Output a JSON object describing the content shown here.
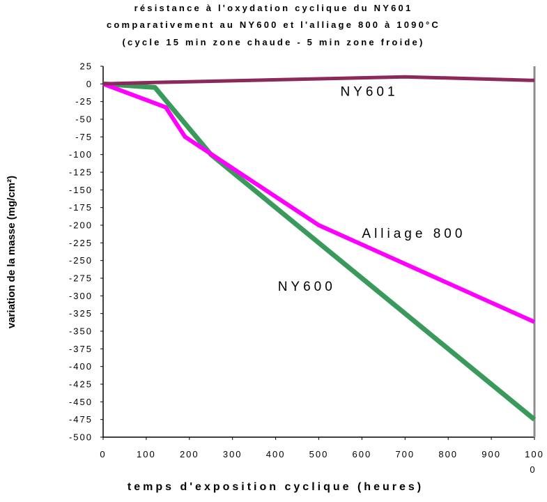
{
  "chart_data": {
    "type": "line",
    "title": [
      "résistance à l'oxydation cyclique du NY601",
      "comparativement au NY600 et l'alliage 800  à 1090°C",
      "(cycle 15 min zone chaude - 5 min zone froide)"
    ],
    "xlabel": "temps d'exposition cyclique (heures)",
    "ylabel": "variation de la masse (mg/cm²)",
    "xlim": [
      0,
      1000
    ],
    "ylim": [
      -500,
      25
    ],
    "x_ticks": [
      "0",
      "100",
      "200",
      "300",
      "400",
      "500",
      "600",
      "700",
      "800",
      "900",
      "100",
      "0"
    ],
    "y_ticks": [
      "25",
      "0",
      "-25",
      "-50",
      "-75",
      "-100",
      "-125",
      "-150",
      "-175",
      "-200",
      "-225",
      "-250",
      "-275",
      "-300",
      "-325",
      "-350",
      "-375",
      "-400",
      "-425",
      "-450",
      "-475",
      "-500"
    ],
    "grid": false,
    "series": [
      {
        "name": "NY601",
        "color": "#8b2a5a",
        "x": [
          0,
          120,
          700,
          1000
        ],
        "y": [
          0,
          2,
          10,
          5
        ]
      },
      {
        "name": "Alliage 800",
        "color": "#ff00ff",
        "x": [
          0,
          145,
          190,
          500,
          1000
        ],
        "y": [
          0,
          -33,
          -75,
          -200,
          -337
        ]
      },
      {
        "name": "NY600",
        "color": "#3a9a5c",
        "x": [
          0,
          120,
          250,
          1000
        ],
        "y": [
          0,
          -5,
          -100,
          -475
        ]
      }
    ],
    "annotations": [
      {
        "text": "NY601",
        "x": 550,
        "y": -17
      },
      {
        "text": "Alliage 800",
        "x": 600,
        "y": -218
      },
      {
        "text": "NY600",
        "x": 405,
        "y": -293
      }
    ]
  }
}
